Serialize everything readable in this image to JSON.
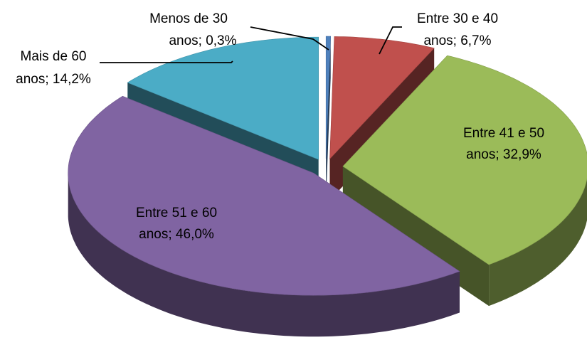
{
  "chart_data": {
    "type": "pie3d",
    "labels": [
      [
        "Menos de 30",
        "anos; 0,3%"
      ],
      [
        "Entre 30 e 40",
        "anos; 6,7%"
      ],
      [
        "Entre 41 e 50",
        "anos; 32,9%"
      ],
      [
        "Entre 51 e 60",
        "anos; 46,0%"
      ],
      [
        "Mais de 60",
        "anos; 14,2%"
      ]
    ],
    "values": [
      0.3,
      6.7,
      32.9,
      46.0,
      14.2
    ],
    "colors": [
      "#4f81bd",
      "#c0504d",
      "#9bbb59",
      "#8064a2",
      "#4bacc6"
    ],
    "exploded": true
  }
}
